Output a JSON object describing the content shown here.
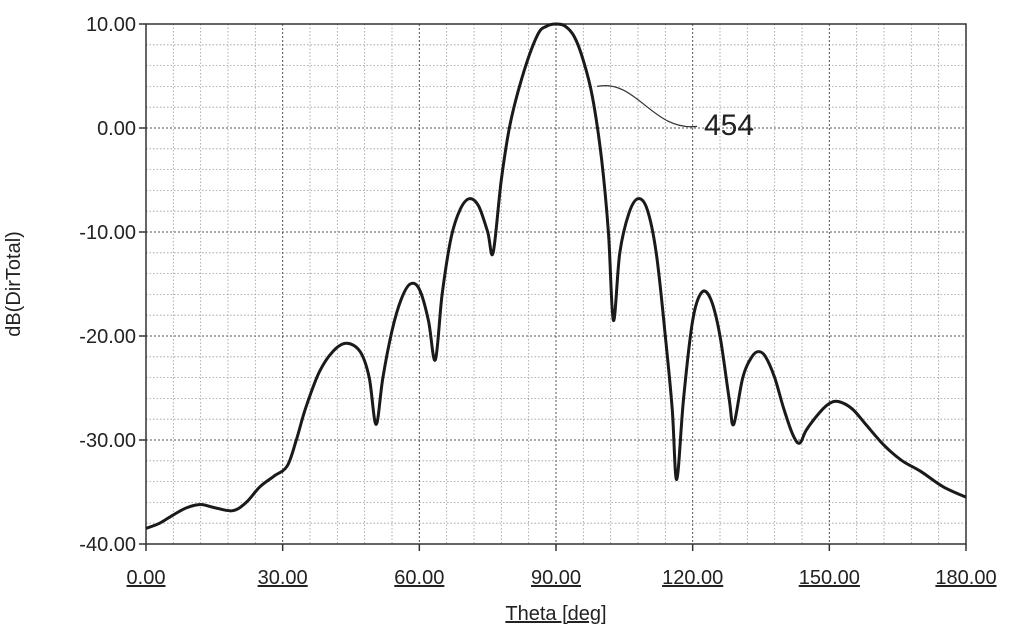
{
  "chart_data": {
    "type": "line",
    "xlabel": "Theta [deg]",
    "ylabel": "dB(DirTotal)",
    "xlim": [
      0,
      180
    ],
    "ylim": [
      -40,
      10
    ],
    "grid": true,
    "x_ticks": [
      "0.00",
      "30.00",
      "60.00",
      "90.00",
      "120.00",
      "150.00",
      "180.00"
    ],
    "y_ticks": [
      "10.00",
      "0.00",
      "-10.00",
      "-20.00",
      "-30.00",
      "-40.00"
    ],
    "annotation": {
      "text": "454",
      "x": 99,
      "y": 4
    },
    "series": [
      {
        "x": [
          0,
          3,
          6,
          9,
          12,
          15,
          19,
          22,
          25,
          28,
          31,
          33,
          35,
          38,
          41,
          44,
          47,
          49,
          50.5,
          52,
          54,
          56,
          58,
          60,
          62,
          63.5,
          65,
          67,
          69,
          71,
          73,
          75,
          76.2,
          78,
          80,
          83,
          86,
          88,
          90,
          92,
          94,
          96,
          98,
          100,
          101.5,
          102.6,
          104,
          106,
          108,
          110,
          112,
          114,
          115.5,
          116.5,
          118,
          120,
          122,
          124,
          126,
          128,
          129,
          131,
          133,
          134.5,
          136,
          138,
          140,
          142,
          143.5,
          145,
          148,
          150,
          152,
          155,
          158,
          162,
          166,
          170,
          175,
          180
        ],
        "y": [
          -38.5,
          -38,
          -37.2,
          -36.5,
          -36.2,
          -36.5,
          -36.8,
          -36,
          -34.5,
          -33.5,
          -32.5,
          -30,
          -27,
          -23.5,
          -21.5,
          -20.7,
          -21.5,
          -24,
          -28.5,
          -24,
          -19.5,
          -16.5,
          -15,
          -15.5,
          -18.5,
          -22.3,
          -16,
          -10.5,
          -7.8,
          -6.8,
          -7.5,
          -10,
          -12,
          -5,
          0.5,
          5.5,
          9,
          9.8,
          10,
          9.8,
          8.8,
          6.5,
          3,
          -3,
          -10,
          -18.5,
          -12,
          -8.2,
          -6.8,
          -7.8,
          -12,
          -20,
          -27,
          -33.8,
          -26,
          -18.5,
          -15.8,
          -16.5,
          -20,
          -26,
          -28.5,
          -24,
          -22,
          -21.5,
          -22,
          -24,
          -27,
          -29.5,
          -30.3,
          -29,
          -27.3,
          -26.5,
          -26.3,
          -27,
          -28.5,
          -30.5,
          -32,
          -33,
          -34.5,
          -35.5
        ]
      }
    ]
  }
}
